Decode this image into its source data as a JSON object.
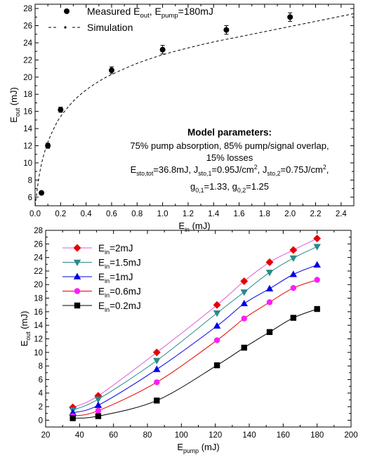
{
  "chart_data": [
    {
      "type": "scatter",
      "xlabel": "E_in (mJ)",
      "xlabel_main": "E",
      "xlabel_sub": "in",
      "xlabel_unit": " (mJ)",
      "ylabel_main": "E",
      "ylabel_sub": "out",
      "ylabel_unit": " (mJ)",
      "xlim": [
        0.0,
        2.5
      ],
      "ylim": [
        5,
        28.5
      ],
      "xticks": [
        0.0,
        0.2,
        0.4,
        0.6,
        0.8,
        1.0,
        1.2,
        1.4,
        1.6,
        1.8,
        2.0,
        2.2,
        2.4
      ],
      "xtick_labels": [
        "0.0",
        "0.2",
        "0.4",
        "0.6",
        "0.8",
        "1.0",
        "1.2",
        "1.4",
        "1.6",
        "1.8",
        "2.0",
        "2.2",
        "2.4"
      ],
      "yticks": [
        6,
        8,
        10,
        12,
        14,
        16,
        18,
        20,
        22,
        24,
        26,
        28
      ],
      "ytick_labels": [
        "6",
        "8",
        "10",
        "12",
        "14",
        "16",
        "18",
        "20",
        "22",
        "24",
        "26",
        "28"
      ],
      "legend_placement": "top-left",
      "legend": [
        {
          "marker": "circle",
          "main": "Measured E",
          "sub1": "out",
          "mid": ", E",
          "sub2": "pump",
          "tail": "=180mJ"
        },
        {
          "marker": "dash",
          "main": "Simulation",
          "sub1": "",
          "mid": "",
          "sub2": "",
          "tail": ""
        }
      ],
      "series": [
        {
          "kind": "measured",
          "x": [
            0.05,
            0.1,
            0.2,
            0.6,
            1.0,
            1.5,
            2.0
          ],
          "y": [
            6.5,
            12.0,
            16.2,
            20.8,
            23.2,
            25.5,
            27.0
          ],
          "yerr": [
            0.2,
            0.3,
            0.3,
            0.4,
            0.5,
            0.5,
            0.5
          ],
          "color": "#000000"
        },
        {
          "kind": "simulation",
          "x": [
            0.0,
            0.03,
            0.06,
            0.1,
            0.15,
            0.2,
            0.3,
            0.4,
            0.5,
            0.6,
            0.8,
            1.0,
            1.2,
            1.4,
            1.6,
            1.8,
            2.0,
            2.2,
            2.4,
            2.5
          ],
          "y": [
            5.0,
            8.3,
            10.5,
            12.4,
            14.1,
            15.4,
            17.2,
            18.5,
            19.5,
            20.3,
            21.6,
            22.6,
            23.4,
            24.1,
            24.7,
            25.3,
            25.9,
            26.5,
            27.1,
            27.4
          ],
          "color": "#000000"
        }
      ],
      "annotation": {
        "title": "Model parameters:",
        "line1": "75% pump absorption, 85% pump/signal overlap,",
        "line2": "15% losses",
        "line3": [
          {
            "t": "E"
          },
          {
            "t": "sto,tot",
            "sub": true
          },
          {
            "t": "=36.8mJ, J"
          },
          {
            "t": "sto,1",
            "sub": true
          },
          {
            "t": "=0.95J/cm"
          },
          {
            "t": "2",
            "sup": true
          },
          {
            "t": ", J"
          },
          {
            "t": "sto,2",
            "sub": true
          },
          {
            "t": "=0.75J/cm"
          },
          {
            "t": "2",
            "sup": true
          },
          {
            "t": ","
          }
        ],
        "line4": [
          {
            "t": "g"
          },
          {
            "t": "0,1",
            "sub": true
          },
          {
            "t": "=1.33, g"
          },
          {
            "t": "0,2",
            "sub": true
          },
          {
            "t": "=1.25"
          }
        ]
      }
    },
    {
      "type": "line",
      "xlabel_main": "E",
      "xlabel_sub": "pump",
      "xlabel_unit": " (mJ)",
      "ylabel_main": "E",
      "ylabel_sub": "out",
      "ylabel_unit": " (mJ)",
      "xlim": [
        20,
        200
      ],
      "ylim": [
        -1,
        28
      ],
      "xticks": [
        20,
        40,
        60,
        80,
        100,
        120,
        140,
        160,
        180,
        200
      ],
      "xtick_labels": [
        "20",
        "40",
        "60",
        "80",
        "100",
        "120",
        "140",
        "160",
        "180",
        "200"
      ],
      "yticks": [
        0,
        2,
        4,
        6,
        8,
        10,
        12,
        14,
        16,
        18,
        20,
        22,
        24,
        26,
        28
      ],
      "ytick_labels": [
        "0",
        "2",
        "4",
        "6",
        "8",
        "10",
        "12",
        "14",
        "16",
        "18",
        "20",
        "22",
        "24",
        "26",
        "28"
      ],
      "legend_placement": "top-left",
      "x": [
        36,
        51,
        85.5,
        121,
        137,
        152,
        166,
        180
      ],
      "series": [
        {
          "main": "E",
          "sub": "in",
          "tail": "=2mJ",
          "marker": "diamond",
          "color": "#e60000",
          "line_color": "#e05ad8",
          "values": [
            1.9,
            3.6,
            10.0,
            17.0,
            20.5,
            23.3,
            25.1,
            26.8
          ]
        },
        {
          "main": "E",
          "sub": "in",
          "tail": "=1.5mJ",
          "marker": "triangle-down",
          "color": "#2a8a8a",
          "line_color": "#2a8a8a",
          "values": [
            1.5,
            3.1,
            8.8,
            15.8,
            18.9,
            21.8,
            23.9,
            25.6
          ]
        },
        {
          "main": "E",
          "sub": "in",
          "tail": "=1mJ",
          "marker": "triangle-up",
          "color": "#0000e6",
          "line_color": "#0000e6",
          "values": [
            1.1,
            2.2,
            7.5,
            13.9,
            17.2,
            19.4,
            21.5,
            22.9
          ]
        },
        {
          "main": "E",
          "sub": "in",
          "tail": "=0.6mJ",
          "marker": "circle",
          "color": "#ff1aff",
          "line_color": "#e60000",
          "values": [
            0.6,
            1.4,
            5.6,
            11.8,
            15.0,
            17.4,
            19.5,
            20.7
          ]
        },
        {
          "main": "E",
          "sub": "in",
          "tail": "=0.2mJ",
          "marker": "square",
          "color": "#000000",
          "line_color": "#000000",
          "values": [
            0.3,
            0.6,
            2.9,
            8.1,
            10.7,
            13.0,
            15.1,
            16.4
          ]
        }
      ]
    }
  ]
}
